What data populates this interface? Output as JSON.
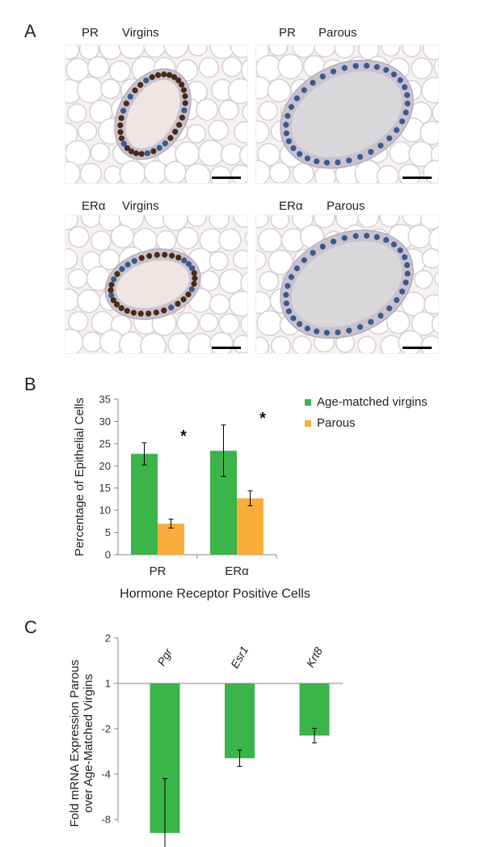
{
  "panels": {
    "a": {
      "letter": "A",
      "images": [
        {
          "marker": "PR",
          "group": "Virgins",
          "stain": "strong-brown-nuclei",
          "lumen": "narrow"
        },
        {
          "marker": "PR",
          "group": "Parous",
          "stain": "blue-nuclei",
          "lumen": "wide"
        },
        {
          "marker": "ERα",
          "group": "Virgins",
          "stain": "strong-brown-nuclei",
          "lumen": "narrow"
        },
        {
          "marker": "ERα",
          "group": "Parous",
          "stain": "blue-nuclei",
          "lumen": "wide"
        }
      ]
    },
    "b": {
      "letter": "B"
    },
    "c": {
      "letter": "C"
    }
  },
  "colors": {
    "green": "#3bb44a",
    "orange": "#f9ad3b",
    "tissue_bg": "#f6f1f3",
    "fat_line": "#d8cfd3",
    "blue_nucleus": "#3a5a8c",
    "brown_nucleus": "#4a2a14"
  },
  "chart_data": [
    {
      "type": "bar",
      "ylabel": "Percentage of Epithelial Cells",
      "xlabel": "Hormone Receptor Positive Cells",
      "categories": [
        "PR",
        "ERα"
      ],
      "ylim": [
        0,
        35
      ],
      "yticks": [
        "0",
        "5",
        "10",
        "15",
        "20",
        "25",
        "30",
        "35"
      ],
      "legend_position": "top-right",
      "series": [
        {
          "name": "Age-matched virgins",
          "color": "#3bb44a",
          "values": [
            22.7,
            23.4
          ],
          "errors": [
            2.5,
            5.8
          ]
        },
        {
          "name": "Parous",
          "color": "#f9ad3b",
          "values": [
            7.0,
            12.7
          ],
          "errors": [
            1.0,
            1.7
          ]
        }
      ],
      "annotations": [
        "*",
        "*"
      ]
    },
    {
      "type": "bar",
      "ylabel_lines": [
        "Fold mRNA Expression Parous",
        "over Age-Matched Virgins"
      ],
      "scale": "log2",
      "yticks": [
        "2",
        "1",
        "-2",
        "-4",
        "-8"
      ],
      "ytick_positions": [
        1,
        0,
        -1,
        -2,
        -3
      ],
      "categories": [
        "Pgr",
        "Esr1",
        "Krt8"
      ],
      "values": [
        -3.3,
        -1.65,
        -1.15
      ],
      "errors": [
        1.2,
        0.18,
        0.16
      ],
      "color": "#3bb44a"
    }
  ]
}
